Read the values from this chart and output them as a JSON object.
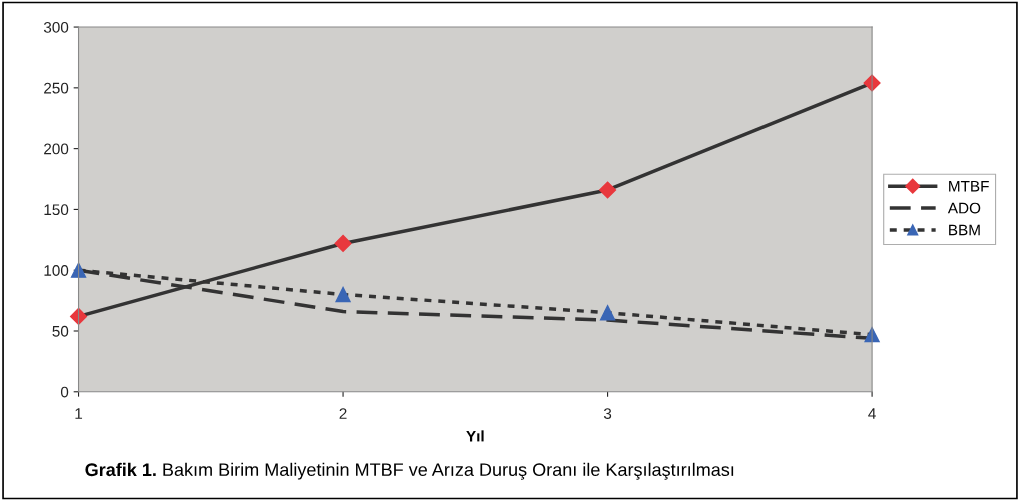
{
  "chart_data": {
    "type": "line",
    "xlabel": "Yıl",
    "x": [
      1,
      2,
      3,
      4
    ],
    "series": [
      {
        "name": "MTBF",
        "color": "#e8383d",
        "marker": "diamond",
        "line_style": "solid",
        "values": [
          62,
          122,
          166,
          254
        ]
      },
      {
        "name": "ADO",
        "color": "#333333",
        "marker": "none",
        "line_style": "dashed",
        "values": [
          100,
          66,
          59,
          44
        ]
      },
      {
        "name": "BBM",
        "color": "#3a66b5",
        "marker": "triangle",
        "line_style": "dotted",
        "values": [
          100,
          80,
          65,
          47
        ]
      }
    ],
    "xlim": [
      1,
      4
    ],
    "xticks": [
      1,
      2,
      3,
      4
    ],
    "ylim": [
      0,
      300
    ],
    "yticks": [
      0,
      50,
      100,
      150,
      200,
      250,
      300
    ],
    "grid": false,
    "legend": "right",
    "annotations": [
      "Grafik 1.",
      "Bakım Birim Maliyetinin MTBF ve Arıza Duruş Oranı ile Karşılaştırılması"
    ]
  }
}
